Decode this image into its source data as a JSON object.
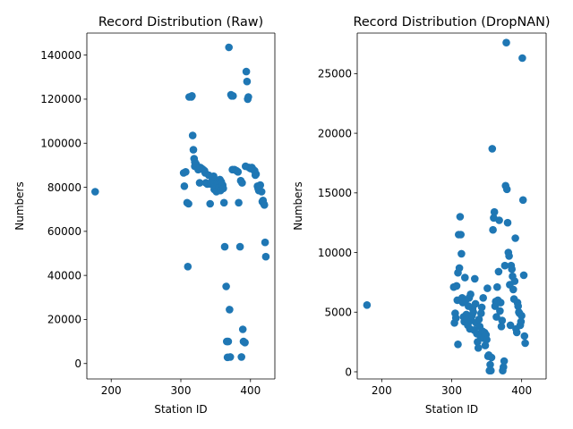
{
  "chart_data": [
    {
      "type": "scatter",
      "title": "Record Distribution (Raw)",
      "xlabel": "Station ID",
      "ylabel": "Numbers",
      "xlim": [
        165,
        435
      ],
      "ylim": [
        -7000,
        150000
      ],
      "xticks": [
        200,
        300,
        400
      ],
      "yticks": [
        0,
        20000,
        40000,
        60000,
        80000,
        100000,
        120000,
        140000
      ],
      "color": "#1f77b4",
      "grid": false,
      "points": [
        [
          177,
          78000
        ],
        [
          304,
          86500
        ],
        [
          305,
          80500
        ],
        [
          307,
          87000
        ],
        [
          309,
          73000
        ],
        [
          310,
          44000
        ],
        [
          311,
          72500
        ],
        [
          312,
          121000
        ],
        [
          315,
          121000
        ],
        [
          316,
          121500
        ],
        [
          317,
          103500
        ],
        [
          318,
          97000
        ],
        [
          319,
          93000
        ],
        [
          320,
          91500
        ],
        [
          320,
          89500
        ],
        [
          322,
          90500
        ],
        [
          324,
          89000
        ],
        [
          325,
          88000
        ],
        [
          327,
          82000
        ],
        [
          328,
          89000
        ],
        [
          330,
          88500
        ],
        [
          332,
          88000
        ],
        [
          334,
          87500
        ],
        [
          335,
          86500
        ],
        [
          336,
          82000
        ],
        [
          338,
          81500
        ],
        [
          340,
          85500
        ],
        [
          342,
          72500
        ],
        [
          343,
          81500
        ],
        [
          345,
          83000
        ],
        [
          347,
          85000
        ],
        [
          348,
          79000
        ],
        [
          350,
          80500
        ],
        [
          351,
          78000
        ],
        [
          352,
          82000
        ],
        [
          354,
          81500
        ],
        [
          355,
          80000
        ],
        [
          356,
          83500
        ],
        [
          357,
          78500
        ],
        [
          358,
          82500
        ],
        [
          360,
          81000
        ],
        [
          361,
          79500
        ],
        [
          362,
          73000
        ],
        [
          363,
          53000
        ],
        [
          365,
          35000
        ],
        [
          366,
          10000
        ],
        [
          367,
          2800
        ],
        [
          368,
          10000
        ],
        [
          369,
          143500
        ],
        [
          370,
          24500
        ],
        [
          371,
          3000
        ],
        [
          372,
          122000
        ],
        [
          373,
          121500
        ],
        [
          374,
          88000
        ],
        [
          375,
          121500
        ],
        [
          377,
          88000
        ],
        [
          380,
          87500
        ],
        [
          382,
          87000
        ],
        [
          383,
          73000
        ],
        [
          385,
          53000
        ],
        [
          386,
          83000
        ],
        [
          387,
          3000
        ],
        [
          388,
          82000
        ],
        [
          389,
          15500
        ],
        [
          390,
          10000
        ],
        [
          392,
          9500
        ],
        [
          393,
          89500
        ],
        [
          394,
          132500
        ],
        [
          395,
          128000
        ],
        [
          396,
          120000
        ],
        [
          397,
          121000
        ],
        [
          398,
          89000
        ],
        [
          400,
          88500
        ],
        [
          402,
          89000
        ],
        [
          404,
          88000
        ],
        [
          406,
          87500
        ],
        [
          407,
          85500
        ],
        [
          408,
          86000
        ],
        [
          410,
          80500
        ],
        [
          411,
          79500
        ],
        [
          412,
          78500
        ],
        [
          414,
          81000
        ],
        [
          416,
          78000
        ],
        [
          417,
          73500
        ],
        [
          418,
          74000
        ],
        [
          419,
          72500
        ],
        [
          420,
          72000
        ],
        [
          421,
          55000
        ],
        [
          422,
          48500
        ]
      ]
    },
    {
      "type": "scatter",
      "title": "Record Distribution (DropNAN)",
      "xlabel": "Station ID",
      "ylabel": "Numbers",
      "xlim": [
        165,
        435
      ],
      "ylim": [
        -600,
        28400
      ],
      "xticks": [
        200,
        300,
        400
      ],
      "yticks": [
        0,
        5000,
        10000,
        15000,
        20000,
        25000
      ],
      "color": "#1f77b4",
      "grid": false,
      "points": [
        [
          179,
          5600
        ],
        [
          303,
          7100
        ],
        [
          304,
          4100
        ],
        [
          305,
          4900
        ],
        [
          306,
          4500
        ],
        [
          307,
          7200
        ],
        [
          308,
          6000
        ],
        [
          309,
          2300
        ],
        [
          309,
          8300
        ],
        [
          310,
          11500
        ],
        [
          311,
          8700
        ],
        [
          312,
          13000
        ],
        [
          313,
          11500
        ],
        [
          314,
          9900
        ],
        [
          315,
          6200
        ],
        [
          316,
          5800
        ],
        [
          317,
          4600
        ],
        [
          318,
          4200
        ],
        [
          319,
          7900
        ],
        [
          320,
          6000
        ],
        [
          321,
          4800
        ],
        [
          322,
          4400
        ],
        [
          323,
          3900
        ],
        [
          324,
          5500
        ],
        [
          325,
          6200
        ],
        [
          326,
          3600
        ],
        [
          327,
          6500
        ],
        [
          328,
          4300
        ],
        [
          329,
          4700
        ],
        [
          330,
          5300
        ],
        [
          331,
          5000
        ],
        [
          332,
          3500
        ],
        [
          333,
          7800
        ],
        [
          334,
          5700
        ],
        [
          335,
          4100
        ],
        [
          336,
          3200
        ],
        [
          337,
          2500
        ],
        [
          338,
          2000
        ],
        [
          339,
          4400
        ],
        [
          340,
          3800
        ],
        [
          341,
          3000
        ],
        [
          342,
          4900
        ],
        [
          343,
          5400
        ],
        [
          344,
          3400
        ],
        [
          345,
          6200
        ],
        [
          346,
          2800
        ],
        [
          347,
          3300
        ],
        [
          348,
          2200
        ],
        [
          349,
          3100
        ],
        [
          350,
          2700
        ],
        [
          351,
          7000
        ],
        [
          352,
          1300
        ],
        [
          353,
          1400
        ],
        [
          354,
          100
        ],
        [
          355,
          600
        ],
        [
          356,
          100
        ],
        [
          357,
          1200
        ],
        [
          358,
          18700
        ],
        [
          359,
          11900
        ],
        [
          360,
          12900
        ],
        [
          361,
          13400
        ],
        [
          362,
          5500
        ],
        [
          363,
          5900
        ],
        [
          364,
          4600
        ],
        [
          365,
          7100
        ],
        [
          366,
          6000
        ],
        [
          367,
          8400
        ],
        [
          368,
          12700
        ],
        [
          369,
          5100
        ],
        [
          370,
          5800
        ],
        [
          371,
          3800
        ],
        [
          372,
          4300
        ],
        [
          373,
          100
        ],
        [
          374,
          400
        ],
        [
          375,
          900
        ],
        [
          376,
          8900
        ],
        [
          377,
          15600
        ],
        [
          378,
          27600
        ],
        [
          379,
          15300
        ],
        [
          380,
          12500
        ],
        [
          381,
          10000
        ],
        [
          382,
          9700
        ],
        [
          383,
          7300
        ],
        [
          384,
          3900
        ],
        [
          385,
          8900
        ],
        [
          386,
          8600
        ],
        [
          387,
          8000
        ],
        [
          388,
          6900
        ],
        [
          389,
          6100
        ],
        [
          390,
          7600
        ],
        [
          391,
          11200
        ],
        [
          392,
          3600
        ],
        [
          393,
          3300
        ],
        [
          394,
          5800
        ],
        [
          395,
          5500
        ],
        [
          396,
          5000
        ],
        [
          397,
          4900
        ],
        [
          398,
          3900
        ],
        [
          399,
          4200
        ],
        [
          400,
          4700
        ],
        [
          401,
          26300
        ],
        [
          402,
          14400
        ],
        [
          403,
          8100
        ],
        [
          404,
          3000
        ],
        [
          405,
          2400
        ]
      ]
    }
  ]
}
